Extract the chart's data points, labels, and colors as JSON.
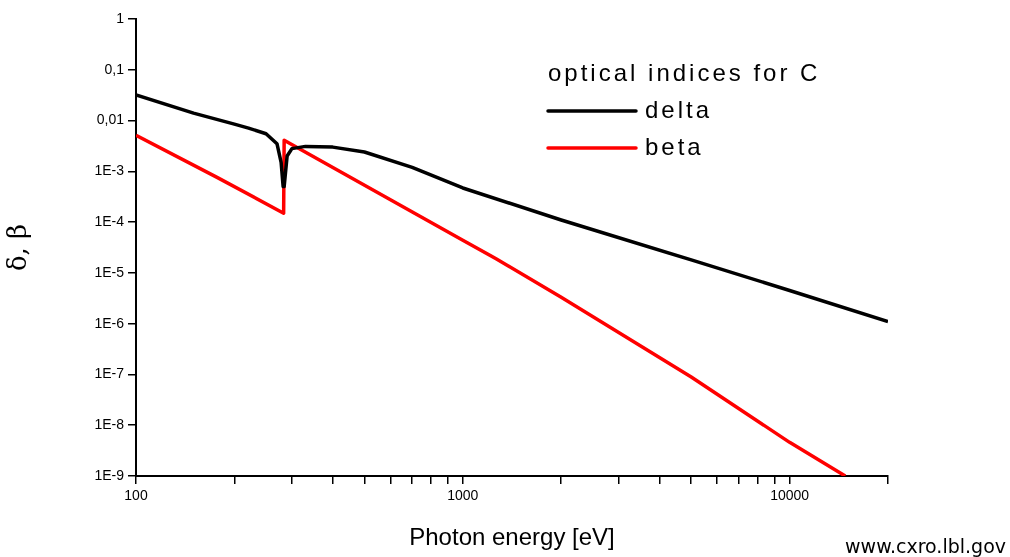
{
  "chart_data": {
    "type": "line",
    "xlabel": "Photon energy [eV]",
    "ylabel": "δ, β",
    "legend_title": "optical indices for C",
    "legend": "top right",
    "grid": false,
    "log": "xy",
    "marker": "none",
    "line_style": "solid",
    "xlim": [
      100,
      20000
    ],
    "ylim": [
      1e-09,
      1
    ],
    "xticks": [
      100,
      {
        "value": 200,
        "label": null
      },
      {
        "value": 300,
        "label": null
      },
      {
        "value": 400,
        "label": null
      },
      {
        "value": 500,
        "label": null
      },
      {
        "value": 600,
        "label": null
      },
      {
        "value": 700,
        "label": null
      },
      {
        "value": 800,
        "label": null
      },
      {
        "value": 900,
        "label": null
      },
      1000,
      {
        "value": 2000,
        "label": null
      },
      {
        "value": 3000,
        "label": null
      },
      {
        "value": 4000,
        "label": null
      },
      {
        "value": 5000,
        "label": null
      },
      {
        "value": 6000,
        "label": null
      },
      {
        "value": 7000,
        "label": null
      },
      {
        "value": 8000,
        "label": null
      },
      {
        "value": 9000,
        "label": null
      },
      10000,
      {
        "value": 20000,
        "label": null
      }
    ],
    "yticks": [
      {
        "value": 1e-09,
        "label": "1E-9"
      },
      {
        "value": 1e-08,
        "label": "1E-8"
      },
      {
        "value": 1e-07,
        "label": "1E-7"
      },
      {
        "value": 1e-06,
        "label": "1E-6"
      },
      {
        "value": 1e-05,
        "label": "1E-5"
      },
      {
        "value": 0.0001,
        "label": "1E-4"
      },
      {
        "value": 0.001,
        "label": "1E-3"
      },
      {
        "value": 0.01,
        "label": "0,01"
      },
      {
        "value": 0.1,
        "label": "0,1"
      },
      1
    ],
    "series": [
      {
        "name": "delta",
        "color": "#000000",
        "x": [
          100,
          150,
          200,
          221,
          250,
          270,
          278,
          282,
          284,
          286,
          290,
          300,
          330,
          400,
          500,
          700,
          1000,
          2000,
          5000,
          10000,
          20000
        ],
        "values": [
          0.032,
          0.014,
          0.0085,
          0.0071,
          0.0055,
          0.0035,
          0.0015,
          0.0005,
          0.0005,
          0.0008,
          0.002,
          0.0028,
          0.0031,
          0.003,
          0.0024,
          0.0012,
          0.00047,
          0.00011,
          1.8e-05,
          4.5e-06,
          1.1e-06
        ]
      },
      {
        "name": "beta",
        "color": "#ff0000",
        "x": [
          100,
          177,
          283,
          284,
          1000,
          1264,
          2000,
          5000,
          10000,
          14800
        ],
        "values": [
          0.0051,
          0.00076,
          0.00015,
          0.0041,
          4.4e-05,
          1.9e-05,
          3.3e-06,
          8.9e-08,
          4.6e-09,
          1e-09
        ]
      }
    ],
    "annotations": [
      "www.cxro.lbl.gov"
    ]
  }
}
